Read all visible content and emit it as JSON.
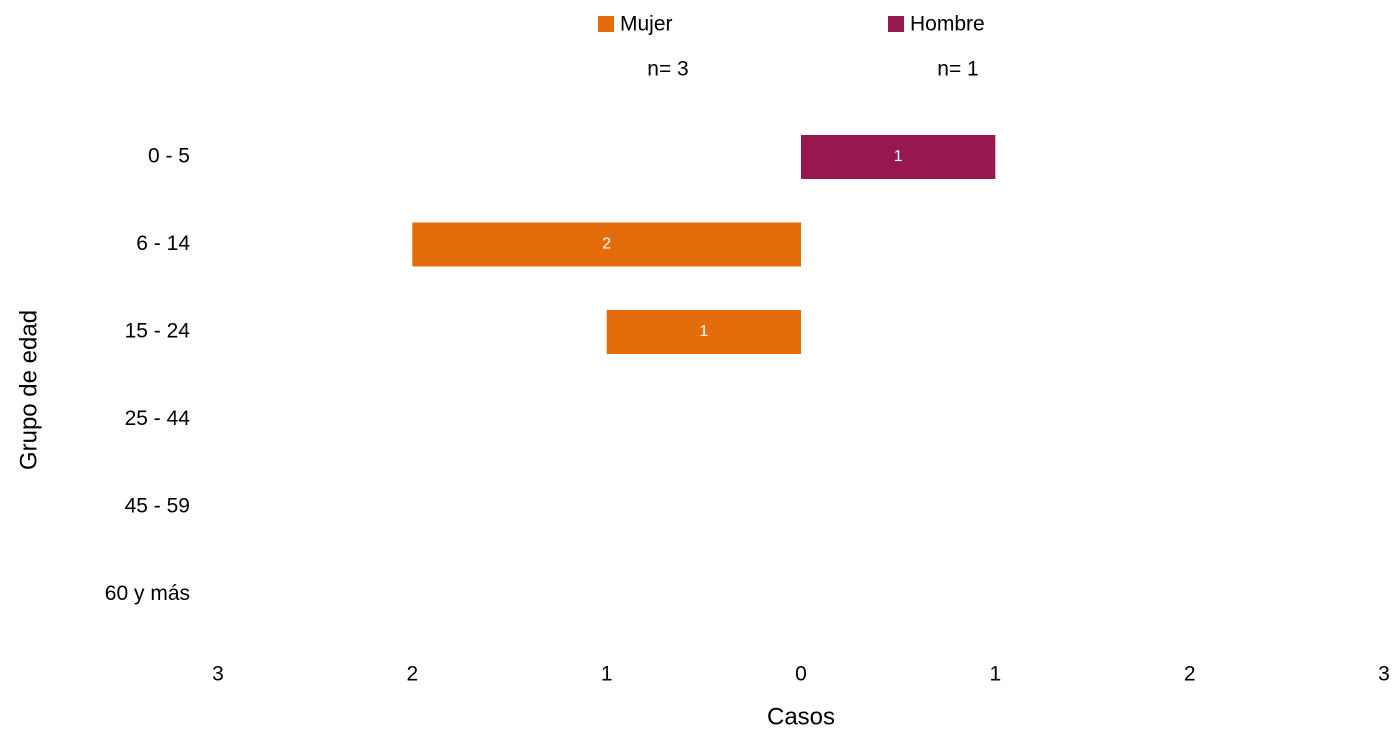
{
  "chart_data": {
    "type": "pyramid",
    "y_label": "Grupo de edad",
    "x_label": "Casos",
    "categories": [
      "0 - 5",
      "6 - 14",
      "15 - 24",
      "25 - 44",
      "45 - 59",
      "60 y más"
    ],
    "series": [
      {
        "name": "Mujer",
        "note": "n= 3",
        "color": "#e46c0a",
        "side": "left",
        "values": [
          null,
          2,
          1,
          null,
          null,
          null
        ]
      },
      {
        "name": "Hombre",
        "note": "n= 1",
        "color": "#97174f",
        "side": "right",
        "values": [
          1,
          null,
          null,
          null,
          null,
          null
        ]
      }
    ],
    "xlim": [
      -3,
      3
    ],
    "xticks": [
      {
        "value": -3,
        "label": "3"
      },
      {
        "value": -2,
        "label": "2"
      },
      {
        "value": -1,
        "label": "1"
      },
      0,
      1,
      2,
      3
    ],
    "grid": false,
    "legend": "top"
  }
}
